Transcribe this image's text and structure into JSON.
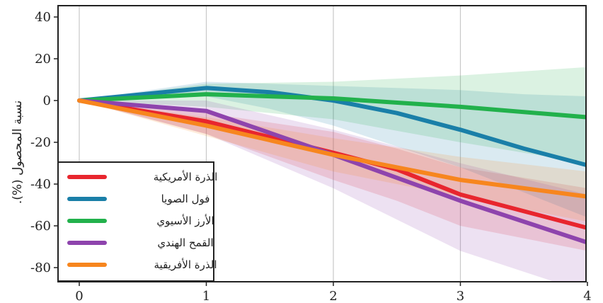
{
  "chart_data": {
    "type": "line",
    "title": "",
    "xlabel": "",
    "ylabel": "نسبة المحصول (%).",
    "x": [
      0,
      1,
      2,
      3,
      4
    ],
    "xticks": [
      "0",
      "1",
      "2",
      "3",
      "4"
    ],
    "yticks": [
      "40",
      "20",
      "0",
      "-20",
      "-40",
      "-60",
      "-80"
    ],
    "xlim": [
      -0.2,
      4.0
    ],
    "ylim": [
      -87,
      45
    ],
    "grid": true,
    "legend_position": "bottom-left",
    "series": [
      {
        "name": "الذرة الأمريكية",
        "color": "#e8262e",
        "x": [
          0,
          1,
          2,
          2.5,
          3,
          4
        ],
        "values": [
          0,
          -10,
          -25,
          -33,
          -45,
          -61
        ],
        "band_upper": [
          0,
          -6,
          -15,
          -23,
          -32,
          -42
        ],
        "band_lower": [
          0,
          -16,
          -38,
          -48,
          -60,
          -72
        ]
      },
      {
        "name": "فول الصويا",
        "color": "#1a7fa8",
        "x": [
          0,
          1,
          1.5,
          2,
          2.5,
          3,
          3.5,
          4
        ],
        "values": [
          0,
          6,
          4,
          0,
          -6,
          -14,
          -23,
          -31
        ],
        "band_upper": [
          0,
          9,
          8,
          7,
          6,
          5,
          3,
          2
        ],
        "band_lower": [
          0,
          2,
          -4,
          -12,
          -22,
          -32,
          -44,
          -56
        ]
      },
      {
        "name": "الأرز الأسيوي",
        "color": "#22b14c",
        "x": [
          0,
          1,
          2,
          3,
          4
        ],
        "values": [
          0,
          3,
          1,
          -3,
          -8
        ],
        "band_upper": [
          0,
          8,
          9,
          12,
          16
        ],
        "band_lower": [
          0,
          -3,
          -9,
          -20,
          -30
        ]
      },
      {
        "name": "القمح الهندي",
        "color": "#8e44ad",
        "x": [
          0,
          1,
          2,
          3,
          4
        ],
        "values": [
          0,
          -5,
          -26,
          -48,
          -68
        ],
        "band_upper": [
          0,
          0,
          -14,
          -30,
          -45
        ],
        "band_lower": [
          0,
          -16,
          -42,
          -72,
          -92
        ]
      },
      {
        "name": "الذرة الأفريقية",
        "color": "#f7861e",
        "x": [
          0,
          1,
          2,
          3,
          4
        ],
        "values": [
          0,
          -12,
          -26,
          -38,
          -46
        ],
        "band_upper": [
          0,
          -8,
          -18,
          -27,
          -34
        ],
        "band_lower": [
          0,
          -17,
          -34,
          -46,
          -58
        ]
      }
    ]
  }
}
